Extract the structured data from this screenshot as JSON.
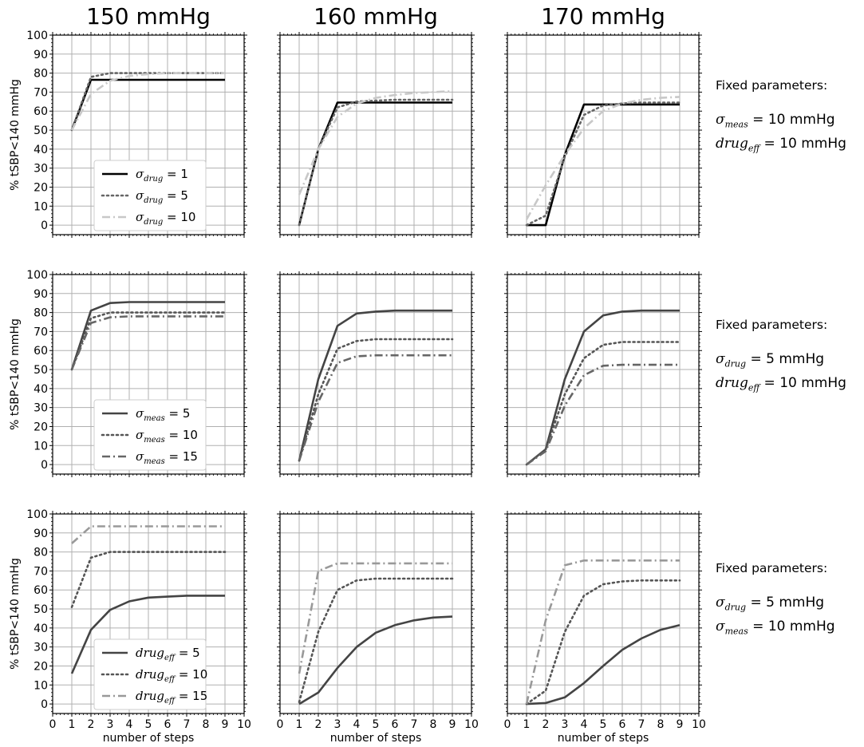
{
  "column_titles": [
    "150 mmHg",
    "160 mmHg",
    "170 mmHg"
  ],
  "row_notes": [
    {
      "heading": "Fixed parameters:",
      "lines": [
        {
          "sym": "σ",
          "sub": "meas",
          "rest": " = 10 mmHg"
        },
        {
          "sym": "drug",
          "sub": "eff",
          "rest": " = 10 mmHg"
        }
      ]
    },
    {
      "heading": "Fixed parameters:",
      "lines": [
        {
          "sym": "σ",
          "sub": "drug",
          "rest": " = 5 mmHg"
        },
        {
          "sym": "drug",
          "sub": "eff",
          "rest": " = 10 mmHg"
        }
      ]
    },
    {
      "heading": "Fixed parameters:",
      "lines": [
        {
          "sym": "σ",
          "sub": "drug",
          "rest": " = 5 mmHg"
        },
        {
          "sym": "σ",
          "sub": "meas",
          "rest": " = 10 mmHg"
        }
      ]
    }
  ],
  "colors": {
    "black": "#000000",
    "dark": "#444444",
    "mid": "#666666",
    "gray": "#888888",
    "light": "#bbbbbb",
    "grid": "#b0b0b0"
  },
  "chart_data": [
    {
      "type": "line",
      "row": 0,
      "col": 0,
      "title": "150 mmHg",
      "ylabel": "% tSBP<140 mmHg",
      "xlim": [
        0,
        10
      ],
      "ylim": [
        -5,
        100
      ],
      "grid": true,
      "legend": "lower-center",
      "x": [
        1,
        2,
        3,
        4,
        5,
        6,
        7,
        8,
        9
      ],
      "series": [
        {
          "name": "σdrug = 1",
          "sym": "σ",
          "sub": "drug",
          "val": " = 1",
          "style": "solid",
          "color": "#000000",
          "values": [
            50,
            76.5,
            76.5,
            76.5,
            76.5,
            76.5,
            76.5,
            76.5,
            76.5
          ]
        },
        {
          "name": "σdrug = 5",
          "sym": "σ",
          "sub": "drug",
          "val": " = 5",
          "style": "dotted",
          "color": "#666666",
          "values": [
            50,
            78,
            80,
            80,
            80,
            80,
            80,
            80,
            80
          ]
        },
        {
          "name": "σdrug = 10",
          "sym": "σ",
          "sub": "drug",
          "val": " = 10",
          "style": "dashdot",
          "color": "#c8c8c8",
          "values": [
            50,
            69,
            76,
            78.5,
            79.5,
            80,
            80,
            80,
            80
          ]
        }
      ]
    },
    {
      "type": "line",
      "row": 0,
      "col": 1,
      "title": "160 mmHg",
      "xlim": [
        0,
        10
      ],
      "ylim": [
        -5,
        100
      ],
      "grid": true,
      "x": [
        1,
        2,
        3,
        4,
        5,
        6,
        7,
        8,
        9
      ],
      "series": [
        {
          "name": "σdrug = 1",
          "style": "solid",
          "color": "#000000",
          "values": [
            0,
            40,
            64.5,
            64.5,
            64.5,
            64.5,
            64.5,
            64.5,
            64.5
          ]
        },
        {
          "name": "σdrug = 5",
          "style": "dotted",
          "color": "#666666",
          "values": [
            0,
            40,
            62,
            65,
            65.5,
            66,
            66,
            66,
            66
          ]
        },
        {
          "name": "σdrug = 10",
          "style": "dashdot",
          "color": "#c8c8c8",
          "values": [
            16,
            40,
            57,
            64,
            67,
            68.5,
            69.5,
            70,
            70.5
          ]
        }
      ]
    },
    {
      "type": "line",
      "row": 0,
      "col": 2,
      "title": "170 mmHg",
      "xlim": [
        0,
        10
      ],
      "ylim": [
        -5,
        100
      ],
      "grid": true,
      "x": [
        1,
        2,
        3,
        4,
        5,
        6,
        7,
        8,
        9
      ],
      "series": [
        {
          "name": "σdrug = 1",
          "style": "solid",
          "color": "#000000",
          "values": [
            0,
            0,
            37,
            63.5,
            63.5,
            63.5,
            63.5,
            63.5,
            63.5
          ]
        },
        {
          "name": "σdrug = 5",
          "style": "dotted",
          "color": "#666666",
          "values": [
            0,
            5,
            36,
            58,
            63,
            64,
            64.5,
            64.5,
            64.5
          ]
        },
        {
          "name": "σdrug = 10",
          "style": "dashdot",
          "color": "#c8c8c8",
          "values": [
            3,
            21,
            37,
            51,
            60,
            64,
            66,
            67,
            67.5
          ]
        }
      ]
    },
    {
      "type": "line",
      "row": 1,
      "col": 0,
      "ylabel": "% tSBP<140 mmHg",
      "xlim": [
        0,
        10
      ],
      "ylim": [
        -5,
        100
      ],
      "grid": true,
      "legend": "lower-center",
      "x": [
        1,
        2,
        3,
        4,
        5,
        6,
        7,
        8,
        9
      ],
      "series": [
        {
          "name": "σmeas = 5",
          "sym": "σ",
          "sub": "meas",
          "val": " = 5",
          "style": "solid",
          "color": "#444444",
          "values": [
            50,
            81,
            85,
            85.5,
            85.5,
            85.5,
            85.5,
            85.5,
            85.5
          ]
        },
        {
          "name": "σmeas = 10",
          "sym": "σ",
          "sub": "meas",
          "val": " = 10",
          "style": "dotted",
          "color": "#555555",
          "values": [
            50,
            77,
            80,
            80,
            80,
            80,
            80,
            80,
            80
          ]
        },
        {
          "name": "σmeas = 15",
          "sym": "σ",
          "sub": "meas",
          "val": " = 15",
          "style": "dashdot",
          "color": "#666666",
          "values": [
            50,
            74.5,
            77.5,
            78,
            78,
            78,
            78,
            78,
            78
          ]
        }
      ]
    },
    {
      "type": "line",
      "row": 1,
      "col": 1,
      "xlim": [
        0,
        10
      ],
      "ylim": [
        -5,
        100
      ],
      "grid": true,
      "x": [
        1,
        2,
        3,
        4,
        5,
        6,
        7,
        8,
        9
      ],
      "series": [
        {
          "name": "σmeas = 5",
          "style": "solid",
          "color": "#444444",
          "values": [
            2,
            45,
            73,
            79.5,
            80.5,
            81,
            81,
            81,
            81
          ]
        },
        {
          "name": "σmeas = 10",
          "style": "dotted",
          "color": "#555555",
          "values": [
            2,
            37,
            61,
            65,
            66,
            66,
            66,
            66,
            66
          ]
        },
        {
          "name": "σmeas = 15",
          "style": "dashdot",
          "color": "#666666",
          "values": [
            2,
            33,
            53.5,
            57,
            57.5,
            57.5,
            57.5,
            57.5,
            57.5
          ]
        }
      ]
    },
    {
      "type": "line",
      "row": 1,
      "col": 2,
      "xlim": [
        0,
        10
      ],
      "ylim": [
        -5,
        100
      ],
      "grid": true,
      "x": [
        1,
        2,
        3,
        4,
        5,
        6,
        7,
        8,
        9
      ],
      "series": [
        {
          "name": "σmeas = 5",
          "style": "solid",
          "color": "#444444",
          "values": [
            0,
            8,
            45,
            70,
            78.5,
            80.5,
            81,
            81,
            81
          ]
        },
        {
          "name": "σmeas = 10",
          "style": "dotted",
          "color": "#555555",
          "values": [
            0,
            8,
            37,
            56,
            63,
            64.5,
            64.5,
            64.5,
            64.5
          ]
        },
        {
          "name": "σmeas = 15",
          "style": "dashdot",
          "color": "#666666",
          "values": [
            0,
            7,
            31,
            47,
            52,
            52.5,
            52.5,
            52.5,
            52.5
          ]
        }
      ]
    },
    {
      "type": "line",
      "row": 2,
      "col": 0,
      "ylabel": "% tSBP<140 mmHg",
      "xlabel": "number of steps",
      "xlim": [
        0,
        10
      ],
      "ylim": [
        -5,
        100
      ],
      "grid": true,
      "legend": "lower-center",
      "x": [
        1,
        2,
        3,
        4,
        5,
        6,
        7,
        8,
        9
      ],
      "series": [
        {
          "name": "drugeff = 5",
          "sym": "drug",
          "sub": "eff",
          "val": " = 5",
          "style": "solid",
          "color": "#444444",
          "values": [
            16,
            39,
            49.5,
            54,
            56,
            56.5,
            57,
            57,
            57
          ]
        },
        {
          "name": "drugeff = 10",
          "sym": "drug",
          "sub": "eff",
          "val": " = 10",
          "style": "dotted",
          "color": "#555555",
          "values": [
            51,
            77,
            80,
            80,
            80,
            80,
            80,
            80,
            80
          ]
        },
        {
          "name": "drugeff = 15",
          "sym": "drug",
          "sub": "eff",
          "val": " = 15",
          "style": "dashdot",
          "color": "#999999",
          "values": [
            84.5,
            93.5,
            93.5,
            93.5,
            93.5,
            93.5,
            93.5,
            93.5,
            93.5
          ]
        }
      ]
    },
    {
      "type": "line",
      "row": 2,
      "col": 1,
      "xlabel": "number of steps",
      "xlim": [
        0,
        10
      ],
      "ylim": [
        -5,
        100
      ],
      "grid": true,
      "x": [
        1,
        2,
        3,
        4,
        5,
        6,
        7,
        8,
        9
      ],
      "series": [
        {
          "name": "drugeff = 5",
          "style": "solid",
          "color": "#444444",
          "values": [
            0,
            6,
            19,
            30,
            37.5,
            41.5,
            44,
            45.5,
            46
          ]
        },
        {
          "name": "drugeff = 10",
          "style": "dotted",
          "color": "#555555",
          "values": [
            1,
            38,
            60,
            65,
            66,
            66,
            66,
            66,
            66
          ]
        },
        {
          "name": "drugeff = 15",
          "style": "dashdot",
          "color": "#999999",
          "values": [
            16,
            70,
            74,
            74,
            74,
            74,
            74,
            74,
            74
          ]
        }
      ]
    },
    {
      "type": "line",
      "row": 2,
      "col": 2,
      "xlabel": "number of steps",
      "xlim": [
        0,
        10
      ],
      "ylim": [
        -5,
        100
      ],
      "grid": true,
      "x": [
        1,
        2,
        3,
        4,
        5,
        6,
        7,
        8,
        9
      ],
      "series": [
        {
          "name": "drugeff = 5",
          "style": "solid",
          "color": "#444444",
          "values": [
            0,
            0.5,
            3.5,
            11,
            20,
            28.5,
            34.5,
            39,
            41.5
          ]
        },
        {
          "name": "drugeff = 10",
          "style": "dotted",
          "color": "#555555",
          "values": [
            0,
            7,
            38,
            57,
            63,
            64.5,
            65,
            65,
            65
          ]
        },
        {
          "name": "drugeff = 15",
          "style": "dashdot",
          "color": "#999999",
          "values": [
            0,
            44,
            73,
            75.5,
            75.5,
            75.5,
            75.5,
            75.5,
            75.5
          ]
        }
      ]
    }
  ]
}
